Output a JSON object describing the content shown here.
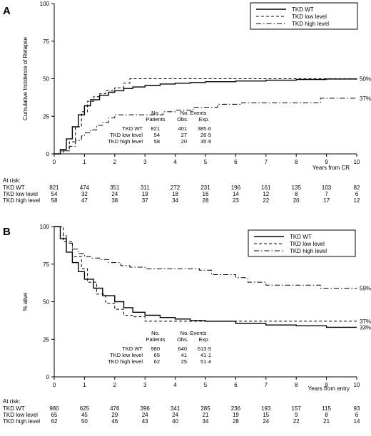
{
  "chart_data": [
    {
      "panel": "A",
      "type": "line",
      "xlabel": "Years from CR",
      "ylabel": "Cumulative Incidence of Relapse",
      "xlim": [
        0,
        10
      ],
      "ylim": [
        0,
        100
      ],
      "xticks": [
        0,
        1,
        2,
        3,
        4,
        5,
        6,
        7,
        8,
        9,
        10
      ],
      "yticks": [
        0,
        25,
        50,
        75,
        100
      ],
      "legend": {
        "placement": "top-right"
      },
      "series": [
        {
          "name": "TKD WT",
          "dash": "solid",
          "x": [
            0,
            0.2,
            0.4,
            0.6,
            0.8,
            1.0,
            1.2,
            1.5,
            1.8,
            2.0,
            2.3,
            2.6,
            3.0,
            3.5,
            4.0,
            4.5,
            5.0,
            6.0,
            7.0,
            8.0,
            9.0,
            10.0
          ],
          "y": [
            0,
            3,
            10,
            18,
            26,
            32,
            36,
            39,
            41,
            42,
            43.5,
            44.5,
            45.5,
            46.5,
            47,
            47.5,
            48,
            48.5,
            49,
            49.5,
            49.8,
            50
          ],
          "end_label": "50%"
        },
        {
          "name": "TKD low level",
          "dash": "dashed",
          "x": [
            0,
            0.25,
            0.5,
            0.7,
            0.9,
            1.1,
            1.3,
            1.5,
            1.7,
            2.0,
            2.3,
            2.5,
            3.5,
            10.0
          ],
          "y": [
            0,
            2,
            8,
            18,
            28,
            35,
            38,
            40,
            42,
            44,
            47,
            50,
            50,
            50
          ]
        },
        {
          "name": "TKD high level",
          "dash": "dashdot",
          "x": [
            0,
            0.3,
            0.5,
            0.7,
            0.9,
            1.0,
            1.2,
            1.4,
            1.6,
            1.8,
            2.0,
            2.2,
            3.0,
            3.6,
            4.0,
            4.6,
            5.4,
            6.2,
            8.2,
            8.8,
            10.0
          ],
          "y": [
            0,
            2,
            5,
            9,
            12,
            14,
            16,
            19,
            21,
            24,
            26,
            26,
            26,
            28,
            29,
            31,
            33,
            34,
            34,
            37,
            37
          ],
          "end_label": "37%"
        }
      ],
      "stats_table": {
        "header_top": [
          "No.",
          "No. Events"
        ],
        "header": [
          "Patients",
          "Obs.",
          "Exp."
        ],
        "rows": [
          {
            "label": "TKD WT",
            "patients": "821",
            "obs": "401",
            "exp": "385·6"
          },
          {
            "label": "TKD low level",
            "patients": "54",
            "obs": "27",
            "exp": "26·5"
          },
          {
            "label": "TKD high level",
            "patients": "58",
            "obs": "20",
            "exp": "35·9"
          }
        ]
      },
      "at_risk": {
        "title": "At risk:",
        "rows": [
          {
            "label": "TKD WT",
            "values": [
              "821",
              "474",
              "351",
              "311",
              "272",
              "231",
              "196",
              "161",
              "135",
              "103",
              "82"
            ]
          },
          {
            "label": "TKD low level",
            "values": [
              "54",
              "32",
              "24",
              "19",
              "18",
              "16",
              "14",
              "12",
              "8",
              "7",
              "6"
            ]
          },
          {
            "label": "TKD high level",
            "values": [
              "58",
              "47",
              "38",
              "37",
              "34",
              "28",
              "23",
              "22",
              "20",
              "17",
              "12"
            ]
          }
        ]
      }
    },
    {
      "panel": "B",
      "type": "line",
      "xlabel": "Years from entry",
      "ylabel": "% alive",
      "xlim": [
        0,
        10
      ],
      "ylim": [
        0,
        100
      ],
      "xticks": [
        0,
        1,
        2,
        3,
        4,
        5,
        6,
        7,
        8,
        9,
        10
      ],
      "yticks": [
        0,
        25,
        50,
        75,
        100
      ],
      "legend": {
        "placement": "top-right"
      },
      "series": [
        {
          "name": "TKD WT",
          "dash": "solid",
          "x": [
            0,
            0.2,
            0.4,
            0.6,
            0.8,
            1.0,
            1.3,
            1.6,
            2.0,
            2.3,
            2.6,
            3.0,
            3.5,
            4.0,
            4.5,
            5.0,
            6.0,
            7.0,
            8.0,
            9.0,
            10.0
          ],
          "y": [
            100,
            92,
            83,
            76,
            70,
            65,
            59,
            54,
            50,
            46,
            43,
            41,
            39.5,
            38.5,
            37.5,
            37,
            35.5,
            34.5,
            34,
            33,
            33
          ],
          "end_label": "33%"
        },
        {
          "name": "TKD low level",
          "dash": "dashed",
          "x": [
            0,
            0.3,
            0.6,
            0.9,
            1.1,
            1.4,
            1.7,
            2.0,
            2.3,
            2.6,
            3.0,
            10.0
          ],
          "y": [
            100,
            90,
            80,
            72,
            63,
            55,
            49,
            45,
            41,
            40,
            37,
            37
          ],
          "end_label": "37%"
        },
        {
          "name": "TKD high level",
          "dash": "dashdot",
          "x": [
            0,
            0.2,
            0.4,
            0.6,
            0.8,
            1.0,
            1.2,
            1.5,
            1.8,
            2.2,
            2.5,
            3.0,
            4.0,
            4.8,
            5.2,
            6.0,
            6.4,
            7.0,
            8.8,
            10.0
          ],
          "y": [
            100,
            94,
            89,
            85,
            82,
            80,
            79,
            78,
            76,
            74,
            73,
            72,
            72,
            71,
            68,
            66,
            63,
            61,
            59,
            59
          ],
          "end_label": "59%"
        }
      ],
      "stats_table": {
        "header_top": [
          "No.",
          "No. Events"
        ],
        "header": [
          "Patients",
          "Obs.",
          "Exp."
        ],
        "rows": [
          {
            "label": "TKD WT",
            "patients": "980",
            "obs": "640",
            "exp": "613·5"
          },
          {
            "label": "TKD low level",
            "patients": "65",
            "obs": "41",
            "exp": "41·1"
          },
          {
            "label": "TKD high level",
            "patients": "62",
            "obs": "25",
            "exp": "51·4"
          }
        ]
      },
      "at_risk": {
        "title": "At risk:",
        "rows": [
          {
            "label": "TKD WT",
            "values": [
              "980",
              "625",
              "476",
              "396",
              "341",
              "285",
              "236",
              "193",
              "157",
              "115",
              "93"
            ]
          },
          {
            "label": "TKD low level",
            "values": [
              "65",
              "45",
              "29",
              "24",
              "24",
              "21",
              "19",
              "15",
              "9",
              "8",
              "6"
            ]
          },
          {
            "label": "TKD high level",
            "values": [
              "62",
              "50",
              "46",
              "43",
              "40",
              "34",
              "28",
              "24",
              "22",
              "21",
              "14"
            ]
          }
        ]
      }
    }
  ]
}
